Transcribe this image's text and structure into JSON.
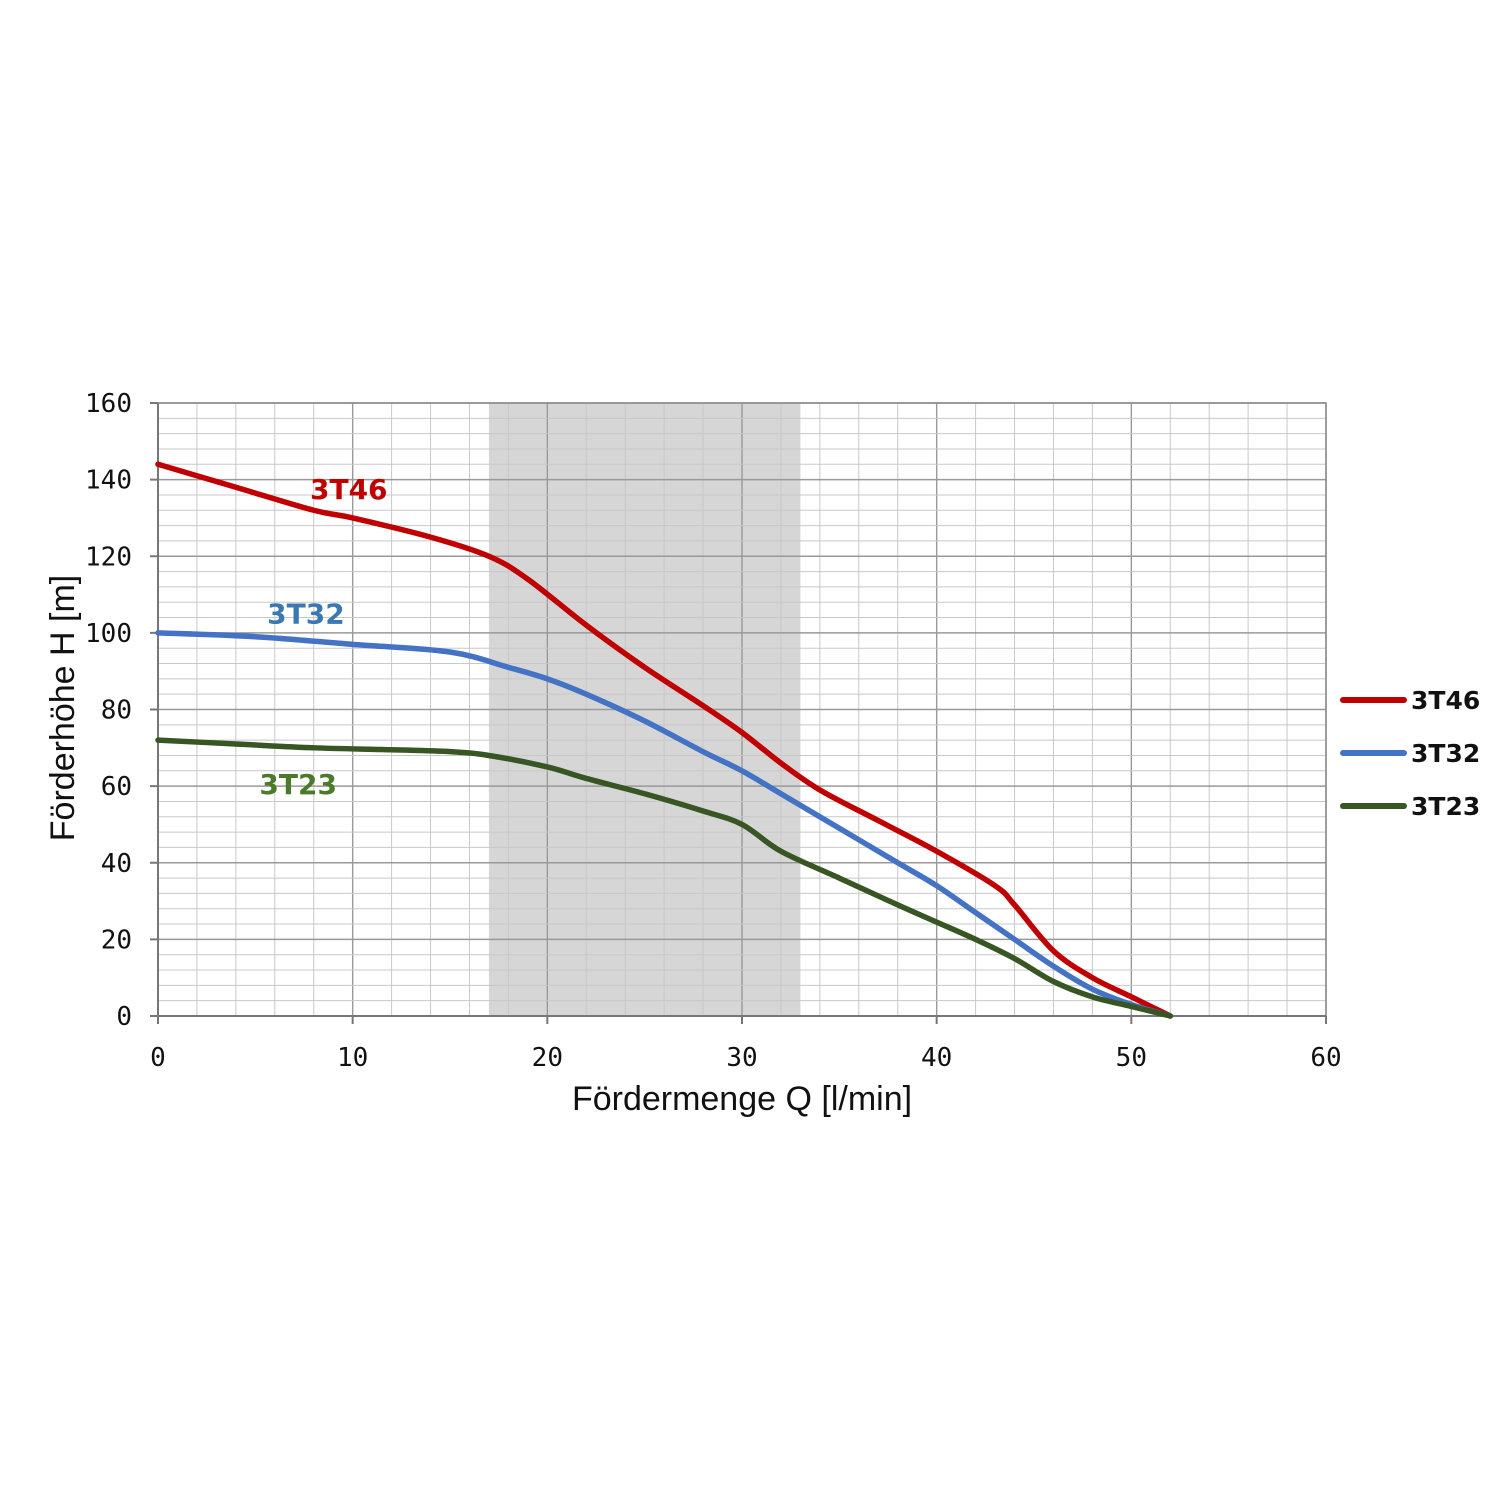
{
  "chart_data": {
    "type": "line",
    "xlabel": "Fördermenge Q [l/min]",
    "ylabel": "Förderhöhe H [m]",
    "xlim": [
      0,
      60
    ],
    "ylim": [
      0,
      160
    ],
    "x_ticks": [
      "0",
      "10",
      "20",
      "30",
      "40",
      "50",
      "60"
    ],
    "y_ticks": [
      "0",
      "20",
      "40",
      "60",
      "80",
      "100",
      "120",
      "140",
      "160"
    ],
    "grid": true,
    "legend": "right",
    "shaded_range": [
      17,
      33
    ],
    "colors": {
      "shade": "#d6d6d6",
      "grid_minor": "#c8c8c8",
      "grid_major": "#999999"
    },
    "series": [
      {
        "name": "3T46",
        "color": "#c00000",
        "label_color": "#c00000",
        "x": [
          0,
          4,
          8,
          10,
          14,
          17,
          19,
          22,
          25,
          28,
          30,
          32,
          34,
          37,
          40,
          43,
          44,
          46,
          48,
          50,
          52
        ],
        "y": [
          144,
          138,
          132,
          130,
          125,
          120,
          114,
          102,
          91,
          81,
          74,
          66,
          59,
          51,
          43,
          34,
          29,
          17,
          10,
          5,
          0
        ]
      },
      {
        "name": "3T32",
        "color": "#4472c4",
        "label_color": "#3a78b4",
        "x": [
          0,
          5,
          10,
          15,
          18,
          20,
          22,
          25,
          28,
          30,
          32,
          35,
          38,
          40,
          42,
          44,
          46,
          48,
          50,
          52
        ],
        "y": [
          100,
          99,
          97,
          95,
          91,
          88,
          84,
          77,
          69,
          64,
          58,
          49,
          40,
          34,
          27,
          20,
          13,
          7,
          3,
          0
        ]
      },
      {
        "name": "3T23",
        "color": "#375623",
        "label_color": "#4a7a2a",
        "x": [
          0,
          4,
          8,
          12,
          15,
          17,
          20,
          22,
          25,
          28,
          30,
          32,
          35,
          38,
          40,
          42,
          44,
          46,
          48,
          50,
          52
        ],
        "y": [
          72,
          71,
          70,
          69.5,
          69,
          68,
          65,
          62,
          58,
          53.5,
          50,
          43,
          36,
          29,
          24.5,
          20,
          15,
          9,
          5,
          2.5,
          0
        ]
      }
    ]
  }
}
